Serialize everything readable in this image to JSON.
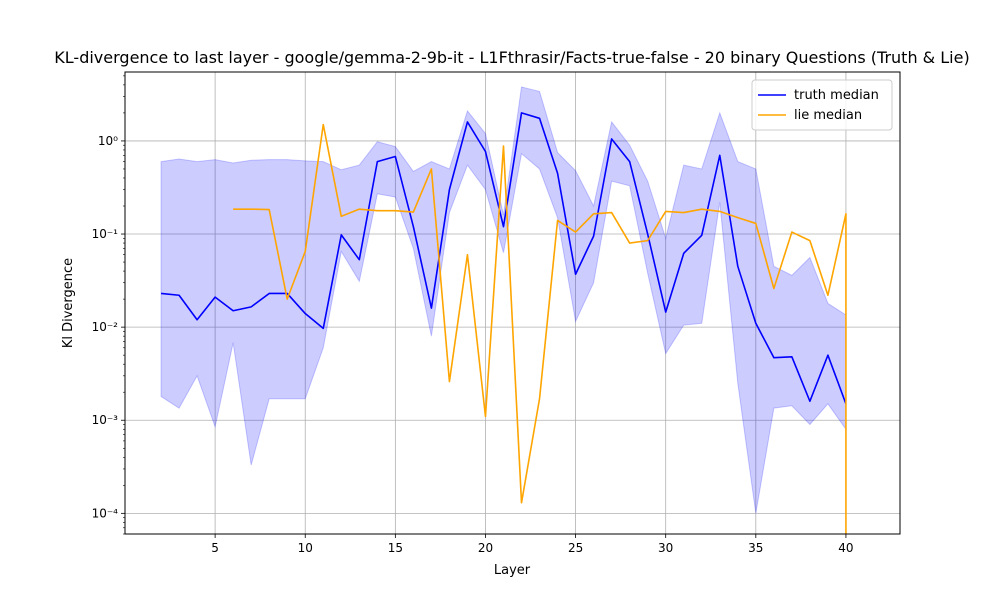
{
  "chart_data": {
    "type": "line",
    "title": "KL-divergence to last layer - google/gemma-2-9b-it - L1Fthrasir/Facts-true-false - 20 binary Questions (Truth & Lie)",
    "xlabel": "Layer",
    "ylabel": "Kl Divergence",
    "xlim": [
      0,
      43
    ],
    "ylim": [
      6e-05,
      5.5
    ],
    "yscale": "log",
    "grid": true,
    "legend_position": "top-right",
    "x_ticks": [
      5,
      10,
      15,
      20,
      25,
      30,
      35,
      40
    ],
    "y_ticks": [
      {
        "value": 0.0001,
        "label": "10⁻⁴"
      },
      {
        "value": 0.001,
        "label": "10⁻³"
      },
      {
        "value": 0.01,
        "label": "10⁻²"
      },
      {
        "value": 0.1,
        "label": "10⁻¹"
      },
      {
        "value": 1,
        "label": "10⁰"
      }
    ],
    "series": [
      {
        "name": "truth median",
        "color": "#0000ff",
        "x": [
          2,
          3,
          4,
          5,
          6,
          7,
          8,
          9,
          10,
          11,
          12,
          13,
          14,
          15,
          16,
          17,
          18,
          19,
          20,
          21,
          22,
          23,
          24,
          25,
          26,
          27,
          28,
          29,
          30,
          31,
          32,
          33,
          34,
          35,
          36,
          37,
          38,
          39,
          40
        ],
        "y": [
          0.023,
          0.022,
          0.012,
          0.021,
          0.015,
          0.0165,
          0.023,
          0.023,
          0.014,
          0.0097,
          0.098,
          0.053,
          0.6,
          0.68,
          0.12,
          0.016,
          0.3,
          1.6,
          0.77,
          0.12,
          2.0,
          1.75,
          0.45,
          0.037,
          0.095,
          1.05,
          0.6,
          0.1,
          0.0145,
          0.062,
          0.097,
          0.7,
          0.045,
          0.011,
          0.0047,
          0.0048,
          0.0016,
          0.005,
          0.0015
        ],
        "band_label": "",
        "band_color": "#0000ff",
        "band_low": [
          0.0018,
          0.00135,
          0.003,
          0.00085,
          0.0068,
          0.00033,
          0.0017,
          0.0017,
          0.0017,
          0.006,
          0.065,
          0.031,
          0.27,
          0.25,
          0.07,
          0.008,
          0.17,
          0.55,
          0.3,
          0.063,
          0.73,
          0.5,
          0.15,
          0.0115,
          0.03,
          0.37,
          0.33,
          0.038,
          0.0052,
          0.0105,
          0.011,
          0.22,
          0.0025,
          0.0001,
          0.00135,
          0.00143,
          0.0009,
          0.0015,
          0.0008
        ],
        "band_high": [
          0.6,
          0.64,
          0.6,
          0.63,
          0.58,
          0.62,
          0.63,
          0.63,
          0.61,
          0.6,
          0.49,
          0.55,
          0.98,
          0.87,
          0.47,
          0.6,
          0.5,
          2.1,
          1.2,
          0.16,
          3.8,
          3.4,
          0.75,
          0.48,
          0.2,
          1.6,
          0.9,
          0.37,
          0.09,
          0.55,
          0.5,
          2.0,
          0.6,
          0.5,
          0.045,
          0.036,
          0.056,
          0.018,
          0.0135
        ]
      },
      {
        "name": "lie median",
        "color": "#ffa500",
        "x": [
          6,
          7,
          8,
          9,
          10,
          11,
          12,
          13,
          14,
          15,
          16,
          17,
          18,
          19,
          20,
          21,
          22,
          23,
          24,
          25,
          26,
          27,
          28,
          29,
          30,
          31,
          32,
          33,
          34,
          35,
          36,
          37,
          38,
          39,
          40,
          40
        ],
        "y": [
          0.185,
          0.185,
          0.183,
          0.02,
          0.065,
          1.5,
          0.155,
          0.185,
          0.178,
          0.178,
          0.172,
          0.5,
          0.0026,
          0.06,
          0.0011,
          0.88,
          0.00013,
          0.0017,
          0.14,
          0.105,
          0.165,
          0.17,
          0.08,
          0.085,
          0.175,
          0.17,
          0.185,
          0.175,
          0.15,
          0.13,
          0.026,
          0.105,
          0.085,
          0.022,
          0.165,
          6e-05
        ]
      }
    ]
  }
}
